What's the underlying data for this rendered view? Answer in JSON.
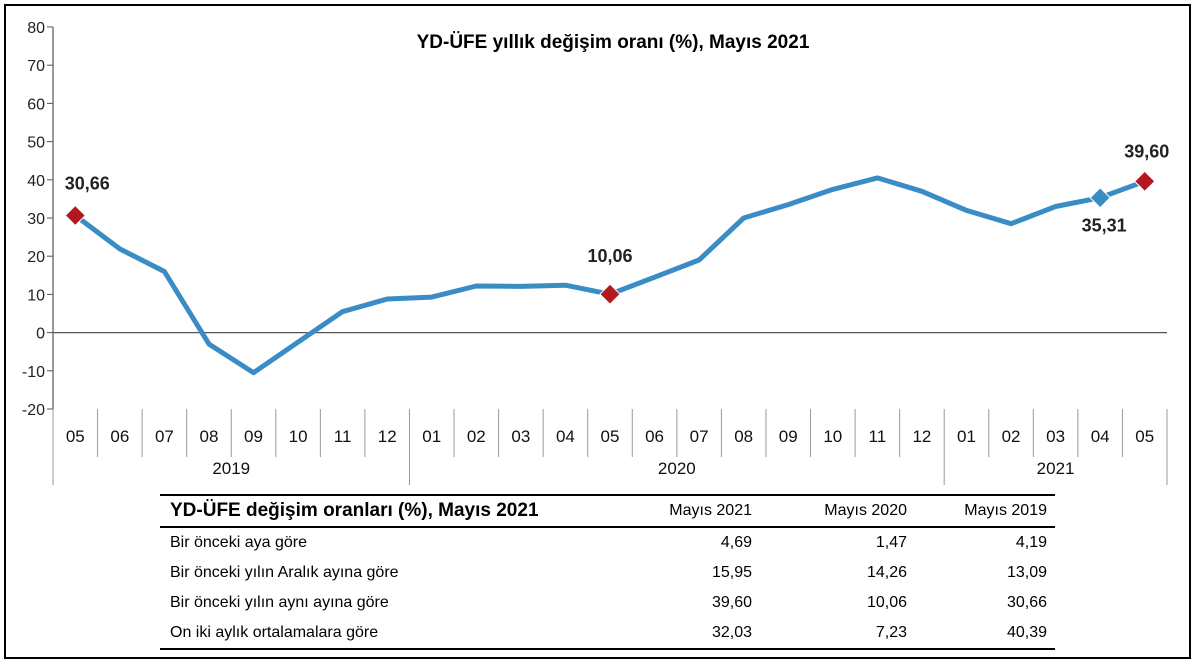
{
  "chart_data": {
    "type": "line",
    "title": "YD-ÜFE yıllık değişim oranı (%), Mayıs 2021",
    "categories": [
      "05",
      "06",
      "07",
      "08",
      "09",
      "10",
      "11",
      "12",
      "01",
      "02",
      "03",
      "04",
      "05",
      "06",
      "07",
      "08",
      "09",
      "10",
      "11",
      "12",
      "01",
      "02",
      "03",
      "04",
      "05"
    ],
    "years": [
      {
        "label": "2019",
        "start": 0,
        "end": 7
      },
      {
        "label": "2020",
        "start": 8,
        "end": 19
      },
      {
        "label": "2021",
        "start": 20,
        "end": 24
      }
    ],
    "series": [
      {
        "values": [
          30.66,
          21.9,
          16.0,
          -3.0,
          -10.5,
          -2.5,
          5.5,
          8.8,
          9.3,
          12.2,
          12.1,
          12.4,
          10.06,
          14.5,
          19.0,
          30.0,
          33.5,
          37.5,
          40.5,
          37.0,
          32.0,
          28.5,
          33.0,
          35.31,
          39.6
        ],
        "color": "#3a8cc4"
      }
    ],
    "markers": [
      {
        "index": 0,
        "label": "30,66",
        "color": "#b3181f"
      },
      {
        "index": 12,
        "label": "10,06",
        "color": "#b3181f"
      },
      {
        "index": 23,
        "label": "35,31",
        "color": "#3a8cc4"
      },
      {
        "index": 24,
        "label": "39,60",
        "color": "#b3181f"
      }
    ],
    "ylim": [
      -20,
      80
    ],
    "yticks": [
      80,
      70,
      60,
      50,
      40,
      30,
      20,
      10,
      0,
      -10,
      -20
    ],
    "grid": false
  },
  "table": {
    "title": "YD-ÜFE değişim oranları (%), Mayıs 2021",
    "columns": [
      "Mayıs 2021",
      "Mayıs 2020",
      "Mayıs 2019"
    ],
    "rows": [
      {
        "label": "Bir önceki aya göre",
        "values": [
          "4,69",
          "1,47",
          "4,19"
        ]
      },
      {
        "label": "Bir önceki yılın Aralık ayına göre",
        "values": [
          "15,95",
          "14,26",
          "13,09"
        ]
      },
      {
        "label": "Bir önceki yılın aynı ayına göre",
        "values": [
          "39,60",
          "10,06",
          "30,66"
        ]
      },
      {
        "label": "On iki aylık ortalamalara göre",
        "values": [
          "32,03",
          "7,23",
          "40,39"
        ]
      }
    ]
  }
}
